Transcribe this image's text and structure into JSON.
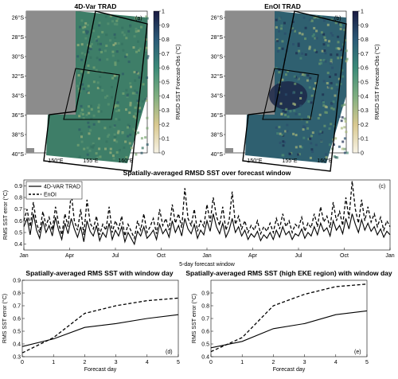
{
  "maps": [
    {
      "title": "4D-Var TRAD",
      "panel_label": "(a)",
      "lat_ticks": [
        "26°S",
        "28°S",
        "30°S",
        "32°S",
        "34°S",
        "36°S",
        "38°S",
        "40°S"
      ],
      "lon_ticks": [
        "150°E",
        "155°E",
        "160°E"
      ],
      "colorbar_ticks": [
        "0",
        "0.1",
        "0.2",
        "0.3",
        "0.4",
        "0.5",
        "0.6",
        "0.7",
        "0.8",
        "0.9",
        "1"
      ],
      "colorbar_label": "RMSD SST Forecast-Obs (°C)"
    },
    {
      "title": "EnOI TRAD",
      "panel_label": "(b)",
      "lat_ticks": [
        "26°S",
        "28°S",
        "30°S",
        "32°S",
        "34°S",
        "36°S",
        "38°S",
        "40°S"
      ],
      "lon_ticks": [
        "150°E",
        "155°E",
        "160°E"
      ],
      "colorbar_ticks": [
        "0",
        "0.1",
        "0.2",
        "0.3",
        "0.4",
        "0.5",
        "0.6",
        "0.7",
        "0.8",
        "0.9",
        "1"
      ],
      "colorbar_label": "RMSD SST Forecast-Obs (°C)"
    }
  ],
  "colors": {
    "land": "#8c8c8c",
    "ocean_low": "#4a8a6a",
    "ocean_high": "#1c2848"
  },
  "chart_data": [
    {
      "type": "line",
      "title": "Spatially-averaged RMSD SST over forecast window",
      "panel_label": "(c)",
      "xlabel": "5-day forecast window",
      "ylabel": "RMS SST error (°C)",
      "x_tick_labels": [
        "Jan",
        "Apr",
        "Jul",
        "Oct",
        "Jan",
        "Apr",
        "Jul",
        "Oct",
        "Jan"
      ],
      "y_ticks": [
        0.4,
        0.5,
        0.6,
        0.7,
        0.8,
        0.9
      ],
      "ylim": [
        0.35,
        0.95
      ],
      "legend_position": "top-left",
      "series": [
        {
          "name": "4D-VAR TRAD",
          "style": "solid",
          "values": [
            0.55,
            0.62,
            0.48,
            0.66,
            0.52,
            0.45,
            0.6,
            0.5,
            0.56,
            0.47,
            0.63,
            0.52,
            0.44,
            0.58,
            0.49,
            0.62,
            0.53,
            0.46,
            0.55,
            0.42,
            0.6,
            0.51,
            0.47,
            0.56,
            0.43,
            0.5,
            0.46,
            0.58,
            0.44,
            0.52,
            0.47,
            0.55,
            0.42,
            0.5,
            0.45,
            0.4,
            0.51,
            0.47,
            0.55,
            0.45,
            0.48,
            0.52,
            0.44,
            0.57,
            0.49,
            0.53,
            0.46,
            0.6,
            0.5,
            0.56,
            0.47,
            0.62,
            0.53,
            0.49,
            0.57,
            0.45,
            0.52,
            0.48,
            0.6,
            0.51,
            0.66,
            0.55,
            0.49,
            0.58,
            0.46,
            0.52,
            0.62,
            0.5,
            0.55,
            0.47,
            0.52,
            0.44,
            0.49,
            0.46,
            0.51,
            0.43,
            0.48,
            0.45,
            0.5,
            0.44,
            0.52,
            0.46,
            0.55,
            0.48,
            0.51,
            0.44,
            0.49,
            0.47,
            0.53,
            0.45,
            0.5,
            0.47,
            0.55,
            0.48,
            0.58,
            0.51,
            0.54,
            0.47,
            0.6,
            0.52,
            0.56,
            0.49,
            0.62,
            0.53,
            0.66,
            0.57,
            0.5,
            0.61,
            0.52,
            0.58,
            0.51,
            0.55,
            0.48,
            0.53,
            0.46,
            0.51,
            0.48
          ]
        },
        {
          "name": "EnOI",
          "style": "dashed",
          "values": [
            0.6,
            0.7,
            0.55,
            0.76,
            0.58,
            0.5,
            0.68,
            0.56,
            0.63,
            0.52,
            0.72,
            0.58,
            0.48,
            0.66,
            0.55,
            0.84,
            0.6,
            0.52,
            0.7,
            0.48,
            0.78,
            0.58,
            0.53,
            0.64,
            0.48,
            0.57,
            0.52,
            0.72,
            0.5,
            0.6,
            0.53,
            0.64,
            0.47,
            0.57,
            0.51,
            0.45,
            0.6,
            0.52,
            0.66,
            0.5,
            0.55,
            0.62,
            0.49,
            0.7,
            0.56,
            0.62,
            0.52,
            0.74,
            0.58,
            0.66,
            0.54,
            0.88,
            0.62,
            0.56,
            0.7,
            0.51,
            0.6,
            0.55,
            0.74,
            0.59,
            0.8,
            0.64,
            0.56,
            0.72,
            0.52,
            0.6,
            0.85,
            0.57,
            0.64,
            0.53,
            0.6,
            0.5,
            0.56,
            0.52,
            0.6,
            0.49,
            0.55,
            0.51,
            0.58,
            0.5,
            0.62,
            0.53,
            0.66,
            0.55,
            0.6,
            0.5,
            0.57,
            0.54,
            0.63,
            0.51,
            0.58,
            0.54,
            0.66,
            0.55,
            0.72,
            0.59,
            0.64,
            0.54,
            0.76,
            0.6,
            0.68,
            0.56,
            0.8,
            0.62,
            0.94,
            0.7,
            0.58,
            0.78,
            0.6,
            0.72,
            0.59,
            0.66,
            0.55,
            0.63,
            0.52,
            0.6,
            0.55
          ]
        }
      ]
    },
    {
      "type": "line",
      "title": "Spatially-averaged RMS SST with window day",
      "panel_label": "(d)",
      "xlabel": "Forecast day",
      "ylabel": "RMS SST error (°C)",
      "x": [
        0,
        1,
        2,
        3,
        4,
        5
      ],
      "xlim": [
        0,
        5
      ],
      "ylim": [
        0.3,
        0.9
      ],
      "y_ticks": [
        0.3,
        0.4,
        0.5,
        0.6,
        0.7,
        0.8,
        0.9
      ],
      "series": [
        {
          "name": "4D-VAR TRAD",
          "style": "solid",
          "values": [
            0.38,
            0.44,
            0.53,
            0.56,
            0.6,
            0.63
          ]
        },
        {
          "name": "EnOI",
          "style": "dashed",
          "values": [
            0.33,
            0.45,
            0.64,
            0.7,
            0.74,
            0.76
          ]
        }
      ]
    },
    {
      "type": "line",
      "title": "Spatially-averaged RMS SST (high EKE region) with window day",
      "panel_label": "(e)",
      "xlabel": "Forecast day",
      "ylabel": "RMS SST error (°C)",
      "x": [
        0,
        1,
        2,
        3,
        4,
        5
      ],
      "xlim": [
        0,
        5
      ],
      "ylim": [
        0.4,
        1.0
      ],
      "y_ticks": [
        0.4,
        0.5,
        0.6,
        0.7,
        0.8,
        0.9
      ],
      "series": [
        {
          "name": "4D-VAR TRAD",
          "style": "solid",
          "values": [
            0.47,
            0.52,
            0.62,
            0.66,
            0.73,
            0.76
          ]
        },
        {
          "name": "EnOI",
          "style": "dashed",
          "values": [
            0.44,
            0.55,
            0.8,
            0.89,
            0.95,
            0.97
          ]
        }
      ]
    }
  ]
}
